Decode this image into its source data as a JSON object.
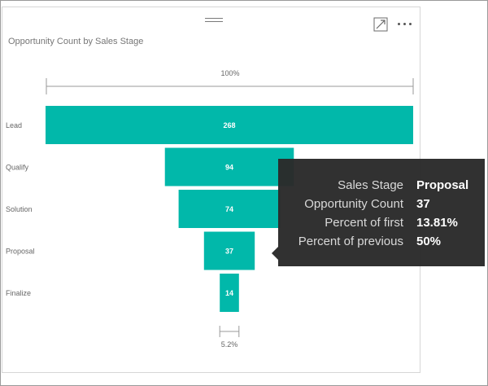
{
  "chart_data": {
    "type": "funnel",
    "title": "Opportunity Count by Sales Stage",
    "categories": [
      "Lead",
      "Qualify",
      "Solution",
      "Proposal",
      "Finalize"
    ],
    "values": [
      268,
      94,
      74,
      37,
      14
    ],
    "top_percent_label": "100%",
    "bottom_percent_label": "5.2%",
    "bar_color": "#01b8aa",
    "value_label_color": "#ffffff",
    "category_label_color": "#666666"
  },
  "tooltip": {
    "rows": [
      {
        "label": "Sales Stage",
        "value": "Proposal"
      },
      {
        "label": "Opportunity Count",
        "value": "37"
      },
      {
        "label": "Percent of first",
        "value": "13.81%"
      },
      {
        "label": "Percent of previous",
        "value": "50%"
      }
    ]
  },
  "header": {
    "focus_icon": "focus-mode-icon",
    "more_icon": "more-options-icon",
    "drag_icon": "drag-handle-icon"
  }
}
